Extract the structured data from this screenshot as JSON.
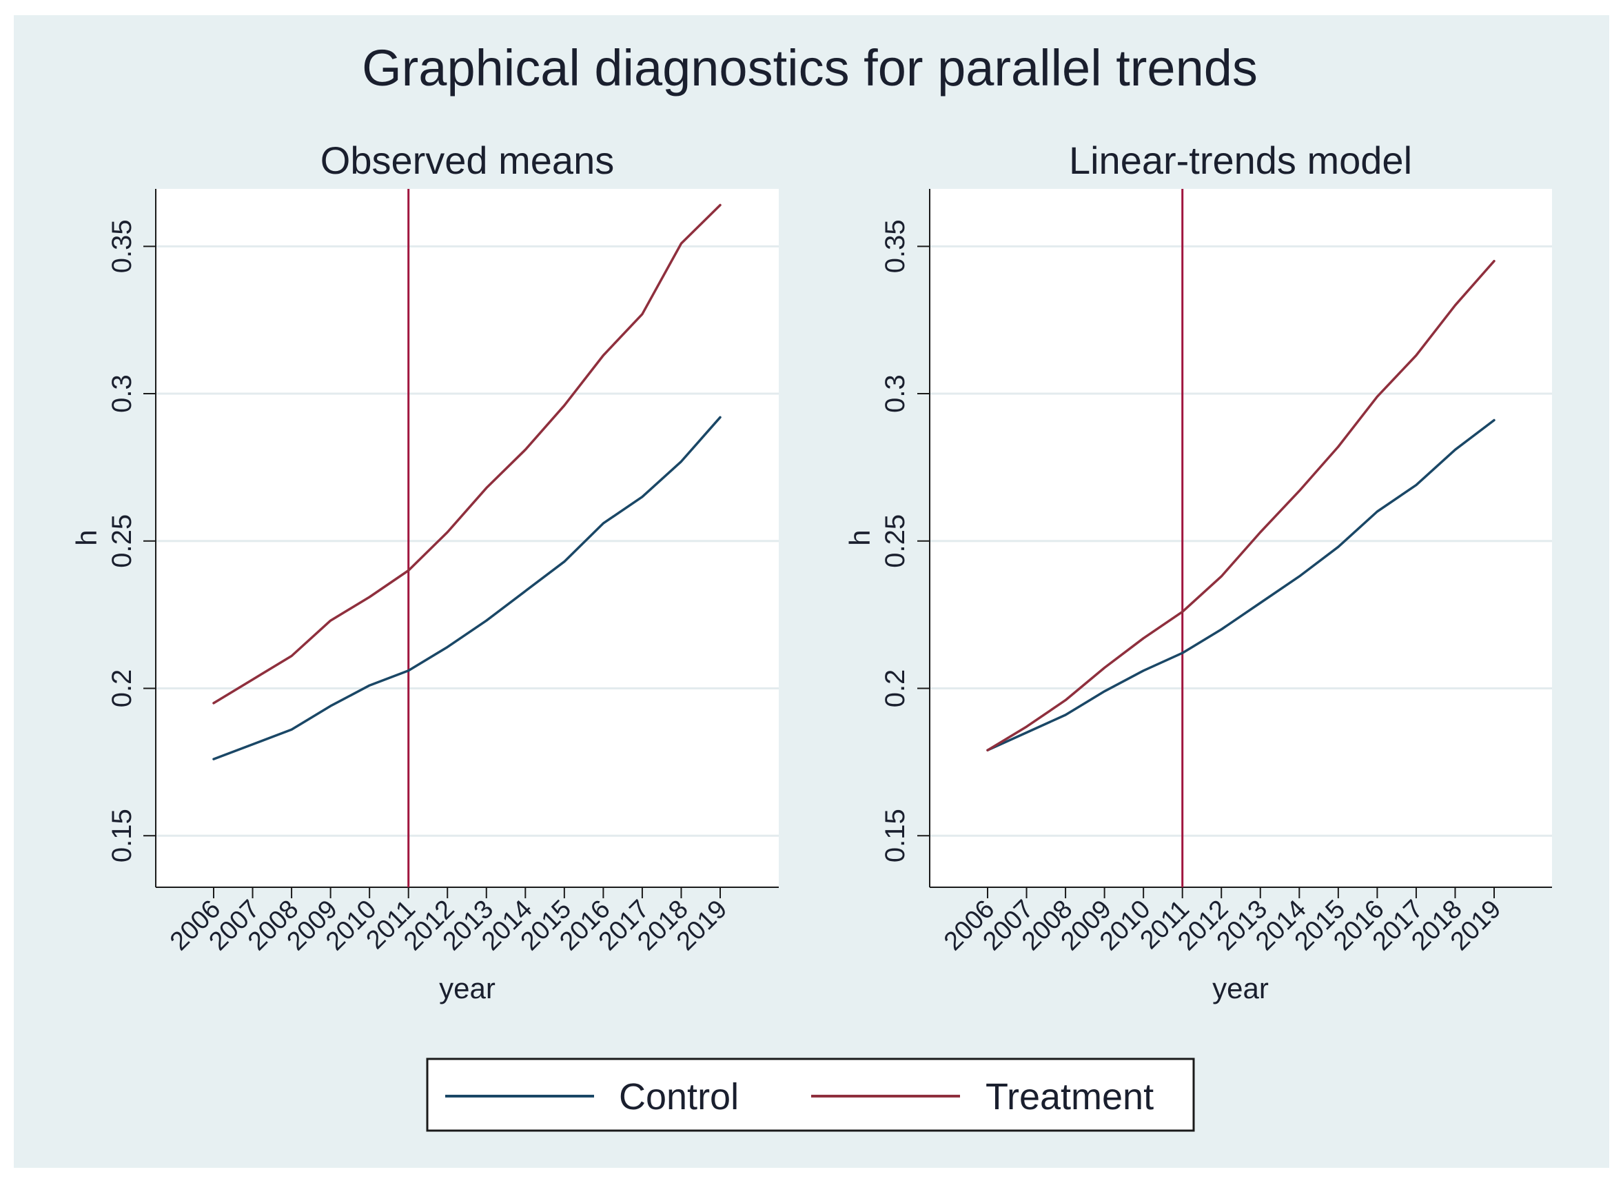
{
  "figure": {
    "title": "Graphical diagnostics for parallel trends"
  },
  "colors": {
    "background": "#e7f0f2",
    "plot_region": "#ffffff",
    "grid": "#e3ebee",
    "axis": "#1a1a1a",
    "control": "#1a4766",
    "treatment": "#8f2f3d",
    "event_line": "#a0163e",
    "text": "#1a1f2e"
  },
  "legend": {
    "items": [
      {
        "label": "Control",
        "color": "#1a4766"
      },
      {
        "label": "Treatment",
        "color": "#8f2f3d"
      }
    ]
  },
  "chart_data": [
    {
      "type": "line",
      "title": "Observed means",
      "xlabel": "year",
      "ylabel": "h",
      "categories": [
        "2006",
        "2007",
        "2008",
        "2009",
        "2010",
        "2011",
        "2012",
        "2013",
        "2014",
        "2015",
        "2016",
        "2017",
        "2018",
        "2019"
      ],
      "yticks": [
        "0.15",
        "0.2",
        "0.25",
        "0.3",
        "0.35"
      ],
      "ylim": [
        0.1325,
        0.3695
      ],
      "vline_at": "2011",
      "grid": true,
      "series": [
        {
          "name": "Control",
          "values": [
            0.176,
            0.181,
            0.186,
            0.194,
            0.201,
            0.206,
            0.214,
            0.223,
            0.233,
            0.243,
            0.256,
            0.265,
            0.277,
            0.292
          ]
        },
        {
          "name": "Treatment",
          "values": [
            0.195,
            0.203,
            0.211,
            0.223,
            0.231,
            0.24,
            0.253,
            0.268,
            0.281,
            0.296,
            0.313,
            0.327,
            0.351,
            0.364
          ]
        }
      ]
    },
    {
      "type": "line",
      "title": "Linear-trends model",
      "xlabel": "year",
      "ylabel": "h",
      "categories": [
        "2006",
        "2007",
        "2008",
        "2009",
        "2010",
        "2011",
        "2012",
        "2013",
        "2014",
        "2015",
        "2016",
        "2017",
        "2018",
        "2019"
      ],
      "yticks": [
        "0.15",
        "0.2",
        "0.25",
        "0.3",
        "0.35"
      ],
      "ylim": [
        0.1325,
        0.3695
      ],
      "vline_at": "2011",
      "grid": true,
      "series": [
        {
          "name": "Control",
          "values": [
            0.179,
            0.185,
            0.191,
            0.199,
            0.206,
            0.212,
            0.22,
            0.229,
            0.238,
            0.248,
            0.26,
            0.269,
            0.281,
            0.291
          ]
        },
        {
          "name": "Treatment",
          "values": [
            0.179,
            0.187,
            0.196,
            0.207,
            0.217,
            0.226,
            0.238,
            0.253,
            0.267,
            0.282,
            0.299,
            0.313,
            0.33,
            0.345
          ]
        }
      ]
    }
  ]
}
